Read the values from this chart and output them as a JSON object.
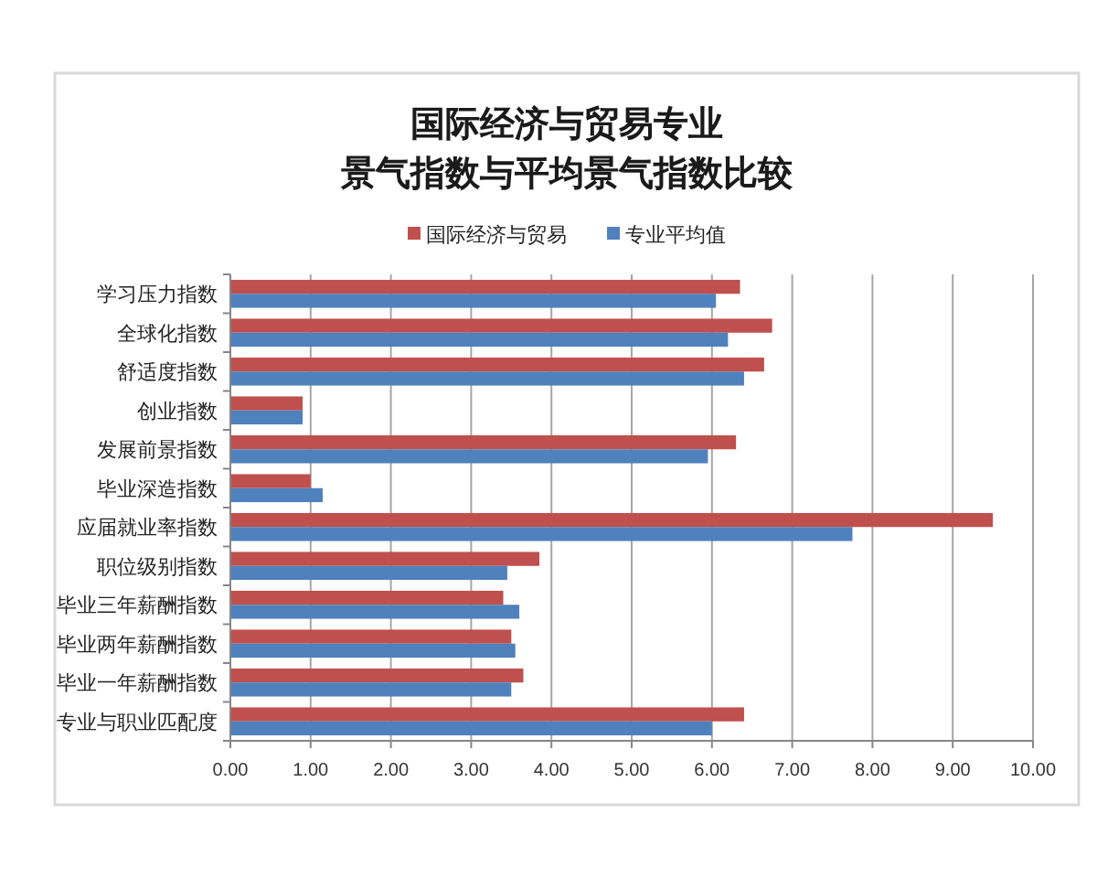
{
  "chart_data": {
    "type": "bar",
    "orientation": "horizontal",
    "title": "国际经济与贸易专业景气指数与平均景气指数比较",
    "categories": [
      "学习压力指数",
      "全球化指数",
      "舒适度指数",
      "创业指数",
      "发展前景指数",
      "毕业深造指数",
      "应届就业率指数",
      "职位级别指数",
      "毕业三年薪酬指数",
      "毕业两年薪酬指数",
      "毕业一年薪酬指数",
      "专业与职业匹配度"
    ],
    "series": [
      {
        "name": "国际经济与贸易",
        "color": "#c0504d",
        "values": [
          6.35,
          6.75,
          6.65,
          0.9,
          6.3,
          1.0,
          9.5,
          3.85,
          3.4,
          3.5,
          3.65,
          6.4
        ]
      },
      {
        "name": "专业平均值",
        "color": "#4f81bd",
        "values": [
          6.05,
          6.2,
          6.4,
          0.9,
          5.95,
          1.15,
          7.75,
          3.45,
          3.6,
          3.55,
          3.5,
          6.0
        ]
      }
    ],
    "xlim": [
      0,
      10
    ],
    "xticks": [
      {
        "value": 0,
        "label": "0.00"
      },
      {
        "value": 1,
        "label": "1.00"
      },
      {
        "value": 2,
        "label": "2.00"
      },
      {
        "value": 3,
        "label": "3.00"
      },
      {
        "value": 4,
        "label": "4.00"
      },
      {
        "value": 5,
        "label": "5.00"
      },
      {
        "value": 6,
        "label": "6.00"
      },
      {
        "value": 7,
        "label": "7.00"
      },
      {
        "value": 8,
        "label": "8.00"
      },
      {
        "value": 9,
        "label": "9.00"
      },
      {
        "value": 10,
        "label": "10.00"
      }
    ],
    "grid": "x",
    "legend": "top"
  }
}
